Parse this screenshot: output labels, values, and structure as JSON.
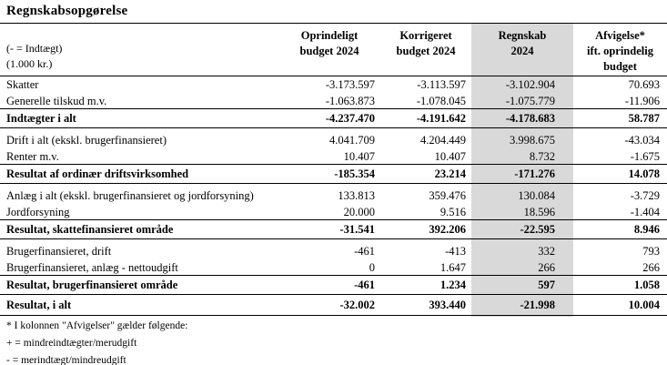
{
  "title": "Regnskabsopgørelse",
  "colors": {
    "highlight_column_gray": "#d9d9d9",
    "cell_flag_green": "#1e8e3e",
    "border_black": "#000000"
  },
  "header": {
    "unit_note_line1": "(- = Indtægt)",
    "unit_note_line2": "(1.000 kr.)",
    "columns": [
      {
        "line1": "Oprindeligt",
        "line2": "budget 2024",
        "line3": ""
      },
      {
        "line1": "Korrigeret",
        "line2": "budget 2024",
        "line3": ""
      },
      {
        "line1": "Regnskab",
        "line2": "2024",
        "line3": ""
      },
      {
        "line1": "Afvigelse*",
        "line2": "ift. oprindelig",
        "line3": "budget"
      }
    ]
  },
  "table": {
    "rows": [
      {
        "label": "Skatter",
        "c1": "-3.173.597",
        "c2": "-3.113.597",
        "c3": "-3.102.904",
        "c4": "70.693"
      },
      {
        "label": "Generelle tilskud m.v.",
        "c1": "-1.063.873",
        "c2": "-1.078.045",
        "c3": "-1.075.779",
        "c4": "-11.906"
      },
      {
        "label": "Indtægter i alt",
        "c1": "-4.237.470",
        "c2": "-4.191.642",
        "c3": "-4.178.683",
        "c4": "58.787"
      },
      {
        "label": "Drift i alt (ekskl. brugerfinansieret)",
        "c1": "4.041.709",
        "c2": "4.204.449",
        "c3": "3.998.675",
        "c4": "-43.034"
      },
      {
        "label": "Renter m.v.",
        "c1": "10.407",
        "c2": "10.407",
        "c3": "8.732",
        "c4": "-1.675"
      },
      {
        "label": "Resultat af ordinær driftsvirksomhed",
        "c1": "-185.354",
        "c2": "23.214",
        "c3": "-171.276",
        "c4": "14.078"
      },
      {
        "label": "Anlæg i alt (ekskl. brugerfinansieret og jordforsyning)",
        "c1": "133.813",
        "c2": "359.476",
        "c3": "130.084",
        "c4": "-3.729"
      },
      {
        "label": "Jordforsyning",
        "c1": "20.000",
        "c2": "9.516",
        "c3": "18.596",
        "c4": "-1.404"
      },
      {
        "label": "Resultat, skattefinansieret område",
        "c1": "-31.541",
        "c2": "392.206",
        "c3": "-22.595",
        "c4": "8.946"
      },
      {
        "label": "Brugerfinansieret, drift",
        "c1": "-461",
        "c2": "-413",
        "c3": "332",
        "c4": "793"
      },
      {
        "label": "Brugerfinansieret, anlæg - nettoudgift",
        "c1": "0",
        "c2": "1.647",
        "c3": "266",
        "c4": "266"
      },
      {
        "label": "Resultat, brugerfinansieret område",
        "c1": "-461",
        "c2": "1.234",
        "c3": "597",
        "c4": "1.058"
      },
      {
        "label": "Resultat, i alt",
        "c1": "-32.002",
        "c2": "393.440",
        "c3": "-21.998",
        "c4": "10.004"
      }
    ]
  },
  "footnotes": {
    "line1": "* I kolonnen \"Afvigelser\" gælder følgende:",
    "line2": "+ = mindreindtægter/merudgift",
    "line3": "- = merindtægt/mindreudgift"
  }
}
